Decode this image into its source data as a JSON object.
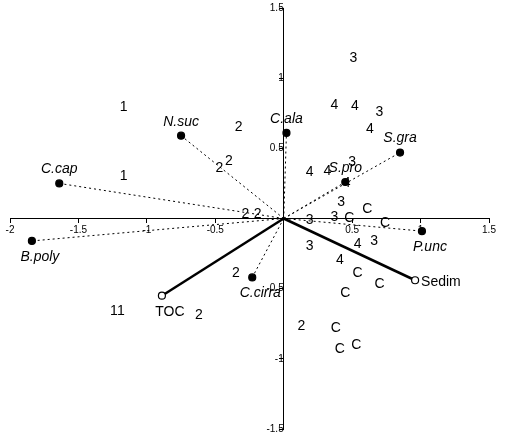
{
  "chart_data": {
    "type": "scatter",
    "xlim": [
      -2,
      1.5
    ],
    "xticks": [
      -2,
      -1.5,
      -1,
      -0.5,
      0.5,
      1,
      1.5
    ],
    "ylim": [
      -1.5,
      1.5
    ],
    "yticks": [
      -1.5,
      -1,
      -0.5,
      0.5,
      1,
      1.5
    ],
    "grid": false,
    "samples": {
      "marker": "text",
      "points": [
        {
          "label": "1",
          "x": -1.17,
          "y": 0.79
        },
        {
          "label": "1",
          "x": -1.17,
          "y": 0.3
        },
        {
          "label": "1",
          "x": -1.24,
          "y": -0.66
        },
        {
          "label": "1",
          "x": -1.19,
          "y": -0.66
        },
        {
          "label": "2",
          "x": -0.33,
          "y": 0.65
        },
        {
          "label": "2",
          "x": -0.47,
          "y": 0.36
        },
        {
          "label": "2",
          "x": -0.4,
          "y": 0.41
        },
        {
          "label": "2",
          "x": -0.28,
          "y": 0.03
        },
        {
          "label": "2",
          "x": -0.19,
          "y": 0.03
        },
        {
          "label": "2",
          "x": -0.35,
          "y": -0.39
        },
        {
          "label": "2",
          "x": -0.62,
          "y": -0.69
        },
        {
          "label": "2",
          "x": 0.13,
          "y": -0.77
        },
        {
          "label": "3",
          "x": 0.51,
          "y": 1.14
        },
        {
          "label": "4",
          "x": 0.37,
          "y": 0.81
        },
        {
          "label": "4",
          "x": 0.52,
          "y": 0.8
        },
        {
          "label": "3",
          "x": 0.7,
          "y": 0.76
        },
        {
          "label": "4",
          "x": 0.63,
          "y": 0.64
        },
        {
          "label": "4",
          "x": 0.19,
          "y": 0.33
        },
        {
          "label": "4",
          "x": 0.32,
          "y": 0.34
        },
        {
          "label": "3",
          "x": 0.5,
          "y": 0.4
        },
        {
          "label": "4",
          "x": 0.46,
          "y": 0.25
        },
        {
          "label": "3",
          "x": 0.42,
          "y": 0.12
        },
        {
          "label": "C",
          "x": 0.61,
          "y": 0.07
        },
        {
          "label": "3",
          "x": 0.37,
          "y": 0.01
        },
        {
          "label": "3",
          "x": 0.19,
          "y": -0.01
        },
        {
          "label": "C",
          "x": 0.48,
          "y": 0.0
        },
        {
          "label": "C",
          "x": 0.74,
          "y": -0.03
        },
        {
          "label": "3",
          "x": 0.19,
          "y": -0.2
        },
        {
          "label": "4",
          "x": 0.54,
          "y": -0.18
        },
        {
          "label": "3",
          "x": 0.66,
          "y": -0.16
        },
        {
          "label": "4",
          "x": 0.41,
          "y": -0.3
        },
        {
          "label": "C",
          "x": 0.54,
          "y": -0.39
        },
        {
          "label": "C",
          "x": 0.7,
          "y": -0.47
        },
        {
          "label": "C",
          "x": 0.45,
          "y": -0.53
        },
        {
          "label": "C",
          "x": 0.38,
          "y": -0.78
        },
        {
          "label": "C",
          "x": 0.41,
          "y": -0.93
        },
        {
          "label": "C",
          "x": 0.53,
          "y": -0.9
        }
      ]
    },
    "species": {
      "marker": "circle",
      "line_style": "dotted",
      "points": [
        {
          "label": "N.suc",
          "x": -0.75,
          "y": 0.59
        },
        {
          "label": "C.cap",
          "x": -1.64,
          "y": 0.25
        },
        {
          "label": "B.poly",
          "x": -1.84,
          "y": -0.16
        },
        {
          "label": "C.ala",
          "x": 0.02,
          "y": 0.61
        },
        {
          "label": "S.gra",
          "x": 0.85,
          "y": 0.47
        },
        {
          "label": "S.pro",
          "x": 0.45,
          "y": 0.26
        },
        {
          "label": "P.unc",
          "x": 1.01,
          "y": -0.09
        },
        {
          "label": "C.cirra",
          "x": -0.23,
          "y": -0.42
        }
      ]
    },
    "vectors": {
      "marker": "open_circle",
      "line_style": "solid",
      "points": [
        {
          "label": "TOC",
          "x": -0.89,
          "y": -0.55
        },
        {
          "label": "Sedim",
          "x": 0.96,
          "y": -0.44
        }
      ]
    }
  }
}
